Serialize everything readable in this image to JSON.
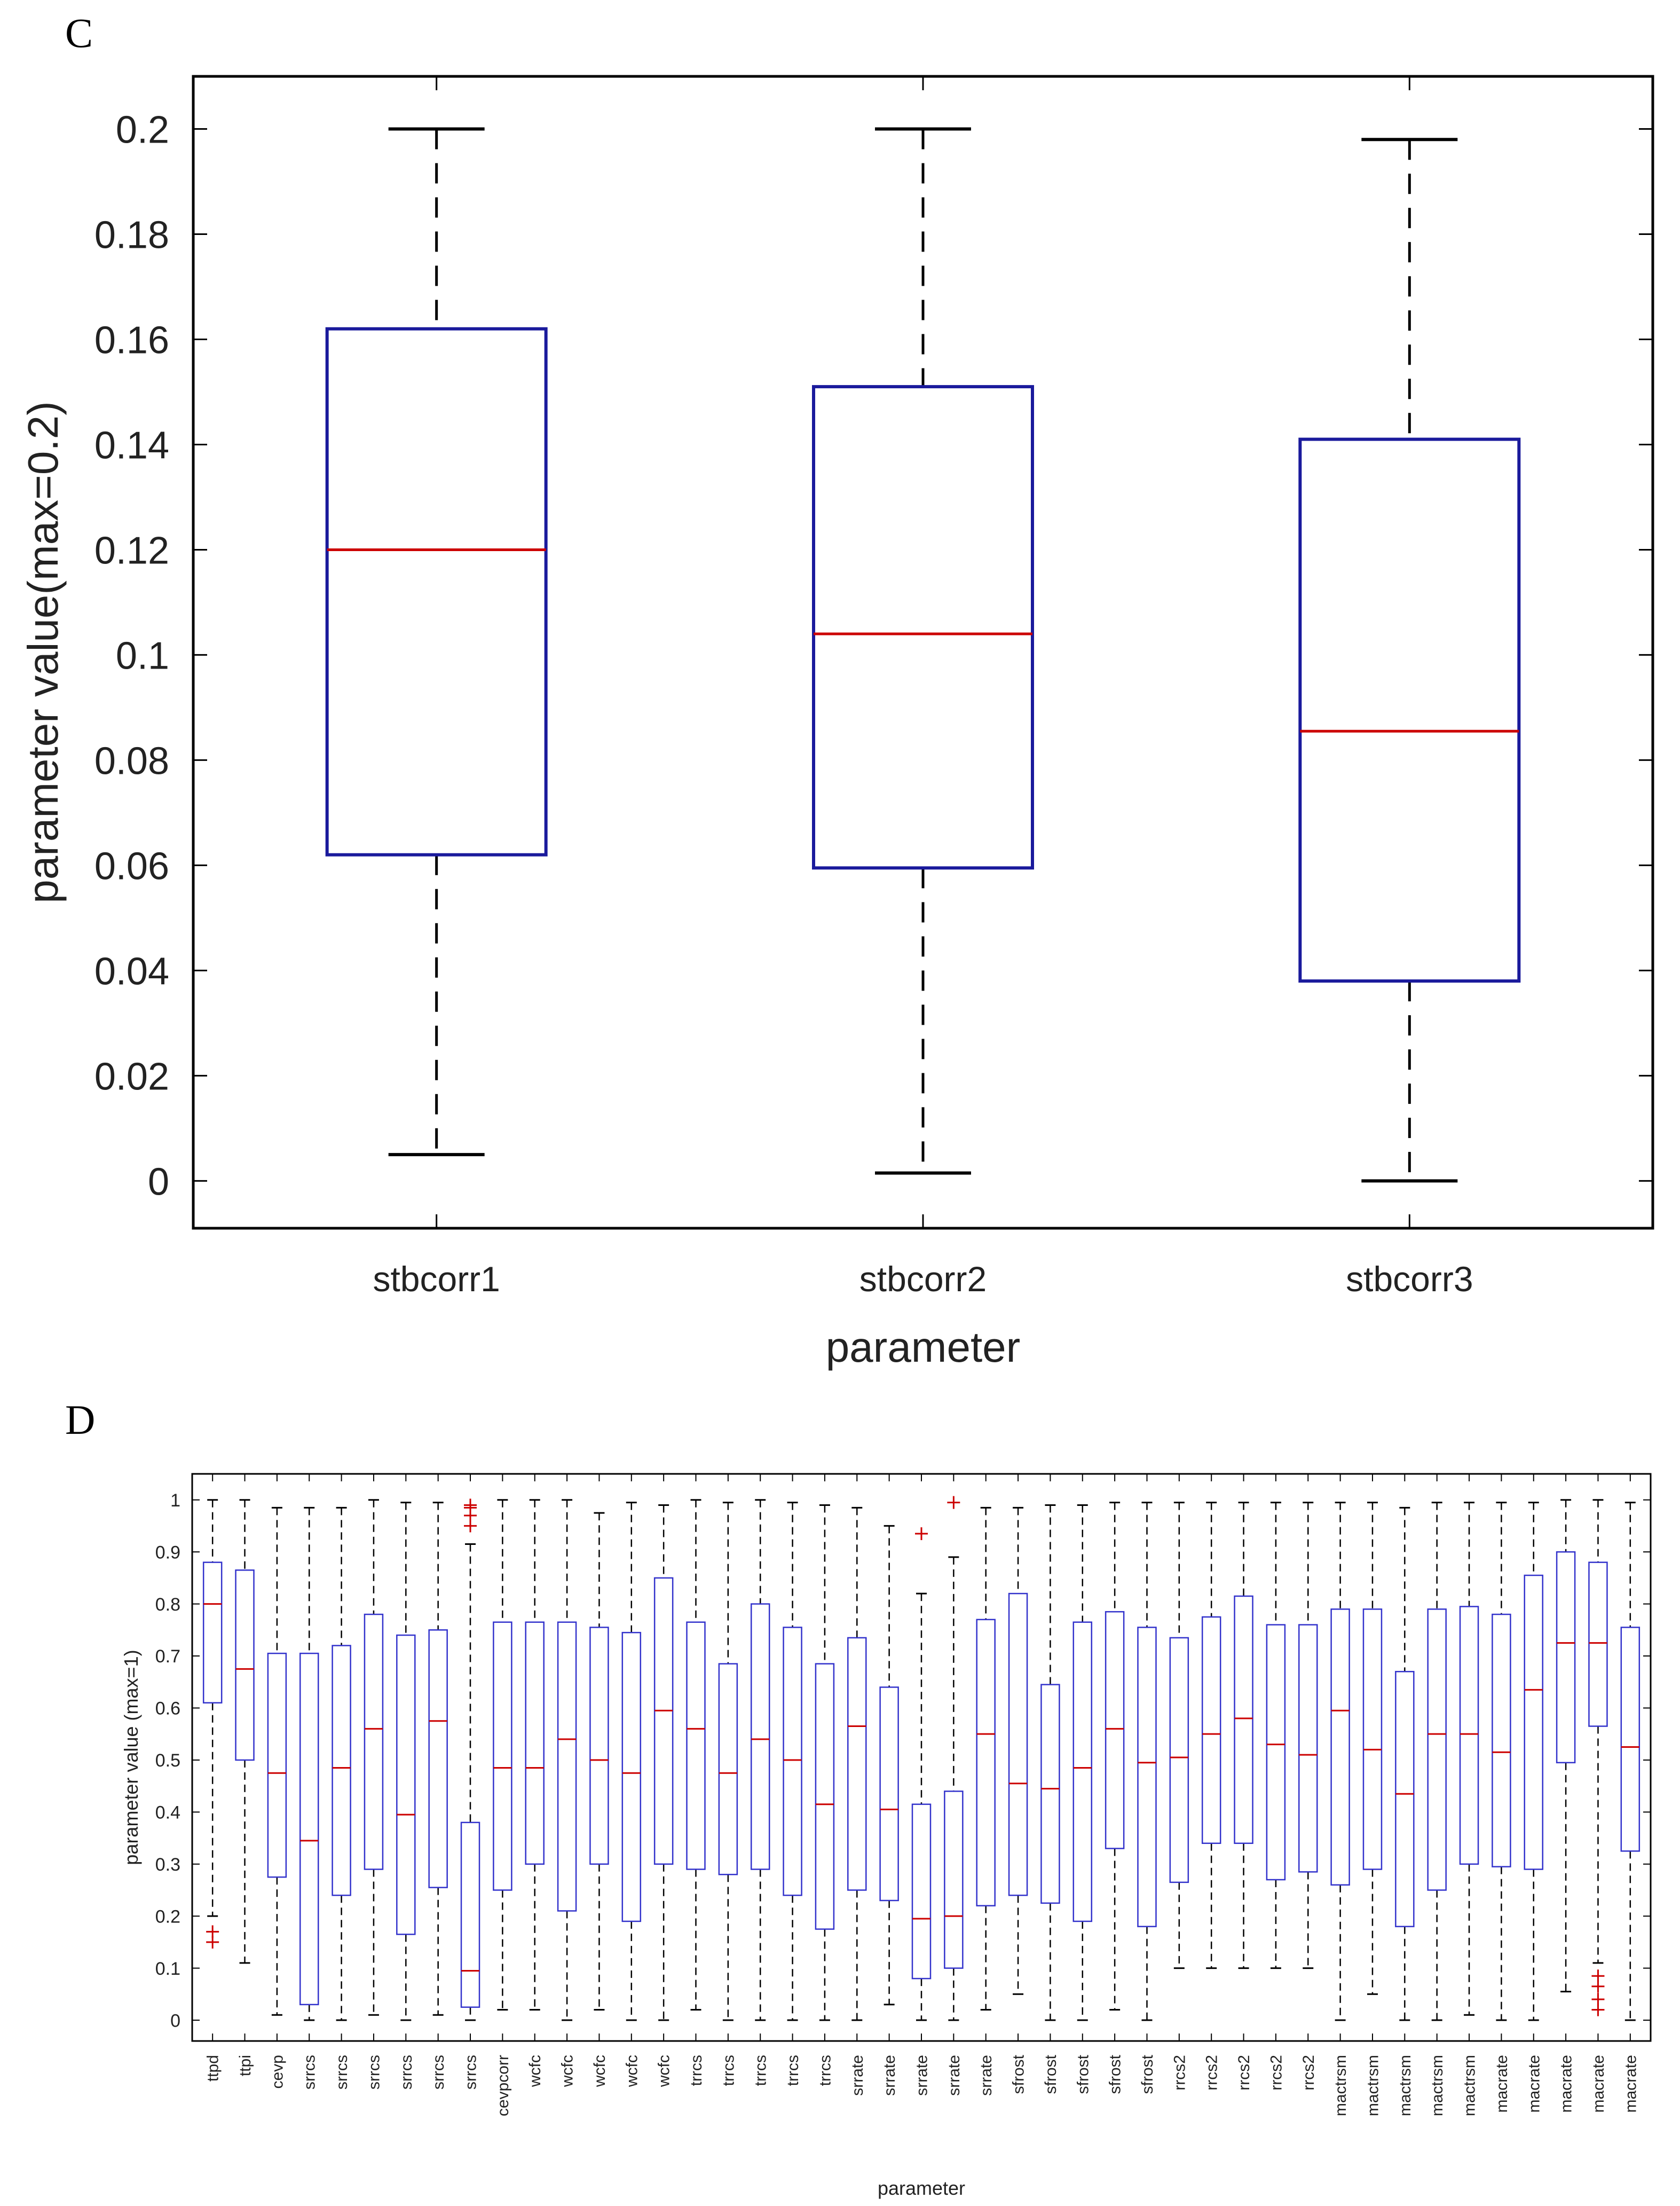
{
  "panel_c": {
    "letter": "C"
  },
  "panel_d": {
    "letter": "D"
  },
  "chart_data": [
    {
      "type": "boxplot",
      "panel": "C",
      "title": "",
      "xlabel": "parameter",
      "ylabel": "parameter value(max=0.2)",
      "ylim": [
        -0.009,
        0.21
      ],
      "yticks": [
        0,
        0.02,
        0.04,
        0.06,
        0.08,
        0.1,
        0.12,
        0.14,
        0.16,
        0.18,
        0.2
      ],
      "ytick_labels": [
        "0",
        "0.02",
        "0.04",
        "0.06",
        "0.08",
        "0.1",
        "0.12",
        "0.14",
        "0.16",
        "0.18",
        "0.2"
      ],
      "categories": [
        "stbcorr1",
        "stbcorr2",
        "stbcorr3"
      ],
      "boxes": [
        {
          "whisker_low": 0.005,
          "q1": 0.062,
          "median": 0.12,
          "q3": 0.162,
          "whisker_high": 0.2,
          "outliers": []
        },
        {
          "whisker_low": 0.0015,
          "q1": 0.0595,
          "median": 0.104,
          "q3": 0.151,
          "whisker_high": 0.2,
          "outliers": []
        },
        {
          "whisker_low": 0.0,
          "q1": 0.038,
          "median": 0.0855,
          "q3": 0.141,
          "whisker_high": 0.198,
          "outliers": []
        }
      ],
      "colors": {
        "box": "#1a1a9c",
        "median": "#cc0000",
        "whisker": "#000000"
      }
    },
    {
      "type": "boxplot",
      "panel": "D",
      "title": "",
      "xlabel": "parameter",
      "ylabel": "parameter value (max=1)",
      "ylim": [
        -0.04,
        1.05
      ],
      "yticks": [
        0,
        0.1,
        0.2,
        0.3,
        0.4,
        0.5,
        0.6,
        0.7,
        0.8,
        0.9,
        1
      ],
      "ytick_labels": [
        "0",
        "0.1",
        "0.2",
        "0.3",
        "0.4",
        "0.5",
        "0.6",
        "0.7",
        "0.8",
        "0.9",
        "1"
      ],
      "categories": [
        "ttpd",
        "ttpi",
        "cevp",
        "srrcs",
        "srrcs",
        "srrcs",
        "srrcs",
        "srrcs",
        "srrcs",
        "cevpcorr",
        "wcfc",
        "wcfc",
        "wcfc",
        "wcfc",
        "wcfc",
        "trrcs",
        "trrcs",
        "trrcs",
        "trrcs",
        "trrcs",
        "srrate",
        "srrate",
        "srrate",
        "srrate",
        "srrate",
        "sfrost",
        "sfrost",
        "sfrost",
        "sfrost",
        "sfrost",
        "rrcs2",
        "rrcs2",
        "rrcs2",
        "rrcs2",
        "rrcs2",
        "mactrsm",
        "mactrsm",
        "mactrsm",
        "mactrsm",
        "mactrsm",
        "macrate",
        "macrate",
        "macrate",
        "macrate",
        "macrate"
      ],
      "boxes": [
        {
          "whisker_low": 0.2,
          "q1": 0.61,
          "median": 0.8,
          "q3": 0.88,
          "whisker_high": 1.0,
          "outliers": [
            0.15,
            0.17
          ]
        },
        {
          "whisker_low": 0.11,
          "q1": 0.5,
          "median": 0.675,
          "q3": 0.865,
          "whisker_high": 1.0,
          "outliers": []
        },
        {
          "whisker_low": 0.01,
          "q1": 0.275,
          "median": 0.475,
          "q3": 0.705,
          "whisker_high": 0.985,
          "outliers": []
        },
        {
          "whisker_low": 0.0,
          "q1": 0.03,
          "median": 0.345,
          "q3": 0.705,
          "whisker_high": 0.985,
          "outliers": []
        },
        {
          "whisker_low": 0.0,
          "q1": 0.24,
          "median": 0.485,
          "q3": 0.72,
          "whisker_high": 0.985,
          "outliers": []
        },
        {
          "whisker_low": 0.01,
          "q1": 0.29,
          "median": 0.56,
          "q3": 0.78,
          "whisker_high": 1.0,
          "outliers": []
        },
        {
          "whisker_low": 0.0,
          "q1": 0.165,
          "median": 0.395,
          "q3": 0.74,
          "whisker_high": 0.995,
          "outliers": []
        },
        {
          "whisker_low": 0.01,
          "q1": 0.255,
          "median": 0.575,
          "q3": 0.75,
          "whisker_high": 0.995,
          "outliers": []
        },
        {
          "whisker_low": 0.0,
          "q1": 0.025,
          "median": 0.095,
          "q3": 0.38,
          "whisker_high": 0.915,
          "outliers": [
            0.95,
            0.97,
            0.985,
            0.99
          ]
        },
        {
          "whisker_low": 0.02,
          "q1": 0.25,
          "median": 0.485,
          "q3": 0.765,
          "whisker_high": 1.0,
          "outliers": []
        },
        {
          "whisker_low": 0.02,
          "q1": 0.3,
          "median": 0.485,
          "q3": 0.765,
          "whisker_high": 1.0,
          "outliers": []
        },
        {
          "whisker_low": 0.0,
          "q1": 0.21,
          "median": 0.54,
          "q3": 0.765,
          "whisker_high": 1.0,
          "outliers": []
        },
        {
          "whisker_low": 0.02,
          "q1": 0.3,
          "median": 0.5,
          "q3": 0.755,
          "whisker_high": 0.975,
          "outliers": []
        },
        {
          "whisker_low": 0.0,
          "q1": 0.19,
          "median": 0.475,
          "q3": 0.745,
          "whisker_high": 0.995,
          "outliers": []
        },
        {
          "whisker_low": 0.0,
          "q1": 0.3,
          "median": 0.595,
          "q3": 0.85,
          "whisker_high": 0.99,
          "outliers": []
        },
        {
          "whisker_low": 0.02,
          "q1": 0.29,
          "median": 0.56,
          "q3": 0.765,
          "whisker_high": 1.0,
          "outliers": []
        },
        {
          "whisker_low": 0.0,
          "q1": 0.28,
          "median": 0.475,
          "q3": 0.685,
          "whisker_high": 0.995,
          "outliers": []
        },
        {
          "whisker_low": 0.0,
          "q1": 0.29,
          "median": 0.54,
          "q3": 0.8,
          "whisker_high": 1.0,
          "outliers": []
        },
        {
          "whisker_low": 0.0,
          "q1": 0.24,
          "median": 0.5,
          "q3": 0.755,
          "whisker_high": 0.995,
          "outliers": []
        },
        {
          "whisker_low": 0.0,
          "q1": 0.175,
          "median": 0.415,
          "q3": 0.685,
          "whisker_high": 0.99,
          "outliers": []
        },
        {
          "whisker_low": 0.0,
          "q1": 0.25,
          "median": 0.565,
          "q3": 0.735,
          "whisker_high": 0.985,
          "outliers": []
        },
        {
          "whisker_low": 0.03,
          "q1": 0.23,
          "median": 0.405,
          "q3": 0.64,
          "whisker_high": 0.95,
          "outliers": []
        },
        {
          "whisker_low": 0.0,
          "q1": 0.08,
          "median": 0.195,
          "q3": 0.415,
          "whisker_high": 0.82,
          "outliers": [
            0.935
          ]
        },
        {
          "whisker_low": 0.0,
          "q1": 0.1,
          "median": 0.2,
          "q3": 0.44,
          "whisker_high": 0.89,
          "outliers": [
            0.995
          ]
        },
        {
          "whisker_low": 0.02,
          "q1": 0.22,
          "median": 0.55,
          "q3": 0.77,
          "whisker_high": 0.985,
          "outliers": []
        },
        {
          "whisker_low": 0.05,
          "q1": 0.24,
          "median": 0.455,
          "q3": 0.82,
          "whisker_high": 0.985,
          "outliers": []
        },
        {
          "whisker_low": 0.0,
          "q1": 0.225,
          "median": 0.445,
          "q3": 0.645,
          "whisker_high": 0.99,
          "outliers": []
        },
        {
          "whisker_low": 0.0,
          "q1": 0.19,
          "median": 0.485,
          "q3": 0.765,
          "whisker_high": 0.99,
          "outliers": []
        },
        {
          "whisker_low": 0.02,
          "q1": 0.33,
          "median": 0.56,
          "q3": 0.785,
          "whisker_high": 0.995,
          "outliers": []
        },
        {
          "whisker_low": 0.0,
          "q1": 0.18,
          "median": 0.495,
          "q3": 0.755,
          "whisker_high": 0.995,
          "outliers": []
        },
        {
          "whisker_low": 0.1,
          "q1": 0.265,
          "median": 0.505,
          "q3": 0.735,
          "whisker_high": 0.995,
          "outliers": []
        },
        {
          "whisker_low": 0.1,
          "q1": 0.34,
          "median": 0.55,
          "q3": 0.775,
          "whisker_high": 0.995,
          "outliers": []
        },
        {
          "whisker_low": 0.1,
          "q1": 0.34,
          "median": 0.58,
          "q3": 0.815,
          "whisker_high": 0.995,
          "outliers": []
        },
        {
          "whisker_low": 0.1,
          "q1": 0.27,
          "median": 0.53,
          "q3": 0.76,
          "whisker_high": 0.995,
          "outliers": []
        },
        {
          "whisker_low": 0.1,
          "q1": 0.285,
          "median": 0.51,
          "q3": 0.76,
          "whisker_high": 0.995,
          "outliers": []
        },
        {
          "whisker_low": 0.0,
          "q1": 0.26,
          "median": 0.595,
          "q3": 0.79,
          "whisker_high": 0.995,
          "outliers": []
        },
        {
          "whisker_low": 0.05,
          "q1": 0.29,
          "median": 0.52,
          "q3": 0.79,
          "whisker_high": 0.995,
          "outliers": []
        },
        {
          "whisker_low": 0.0,
          "q1": 0.18,
          "median": 0.435,
          "q3": 0.67,
          "whisker_high": 0.985,
          "outliers": []
        },
        {
          "whisker_low": 0.0,
          "q1": 0.25,
          "median": 0.55,
          "q3": 0.79,
          "whisker_high": 0.995,
          "outliers": []
        },
        {
          "whisker_low": 0.01,
          "q1": 0.3,
          "median": 0.55,
          "q3": 0.795,
          "whisker_high": 0.995,
          "outliers": []
        },
        {
          "whisker_low": 0.0,
          "q1": 0.295,
          "median": 0.515,
          "q3": 0.78,
          "whisker_high": 0.995,
          "outliers": []
        },
        {
          "whisker_low": 0.0,
          "q1": 0.29,
          "median": 0.635,
          "q3": 0.855,
          "whisker_high": 0.995,
          "outliers": []
        },
        {
          "whisker_low": 0.055,
          "q1": 0.495,
          "median": 0.725,
          "q3": 0.9,
          "whisker_high": 1.0,
          "outliers": []
        },
        {
          "whisker_low": 0.11,
          "q1": 0.565,
          "median": 0.725,
          "q3": 0.88,
          "whisker_high": 1.0,
          "outliers": [
            0.02,
            0.04,
            0.065,
            0.085
          ]
        },
        {
          "whisker_low": 0.0,
          "q1": 0.325,
          "median": 0.525,
          "q3": 0.755,
          "whisker_high": 0.995,
          "outliers": []
        }
      ],
      "colors": {
        "box": "#3333cc",
        "median": "#cc0000",
        "whisker": "#000000"
      }
    }
  ]
}
